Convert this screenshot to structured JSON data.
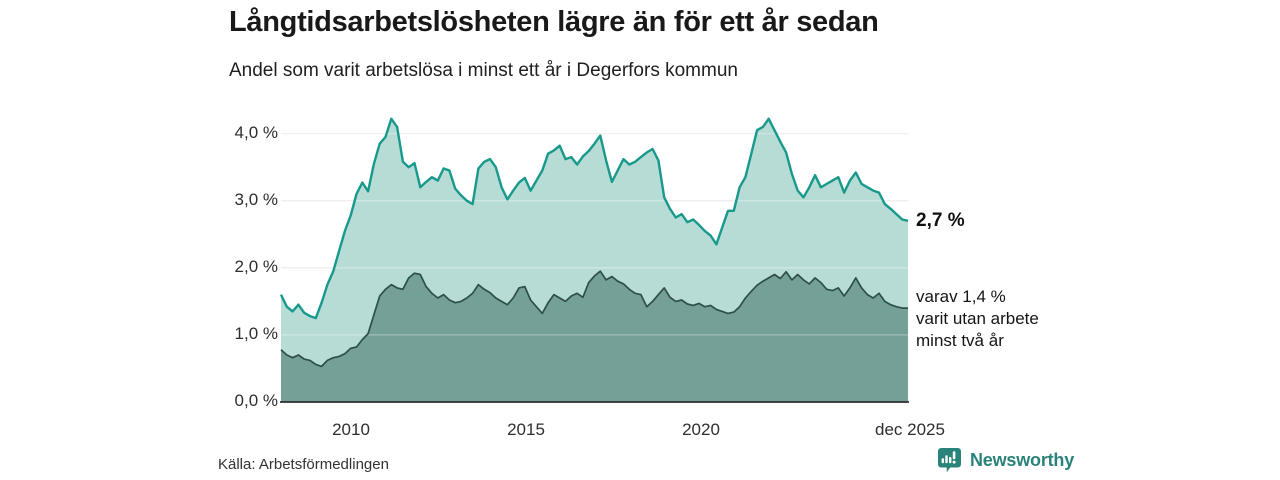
{
  "header": {
    "title": "Långtidsarbetslösheten lägre än för ett år sedan",
    "subtitle": "Andel som varit arbetslösa i minst ett år i Degerfors kommun"
  },
  "chart_data": {
    "type": "area",
    "title": "Långtidsarbetslösheten lägre än för ett år sedan",
    "subtitle": "Andel som varit arbetslösa i minst ett år i Degerfors kommun",
    "unit": "%",
    "x_range": [
      "jan 2008",
      "dec 2025"
    ],
    "sampling": "values every 2 months, jan 2008 - dec 2025",
    "x_tick_labels": [
      "2010",
      "2015",
      "2020",
      "dec 2025"
    ],
    "y_tick_labels": [
      "4,0 %",
      "3,0 %",
      "2,0 %",
      "1,0 %",
      "0,0 %"
    ],
    "y_gridlines": [
      4,
      3,
      2,
      1
    ],
    "ylim": [
      0,
      4.3
    ],
    "grid": true,
    "legend_position": "right-annotations",
    "series": [
      {
        "name": "Andel arbetslösa minst ett år",
        "color": "#18998b",
        "fill": "#b7dcd6",
        "end_value": 2.7,
        "end_label": "2,7 %",
        "values": [
          1.6,
          1.42,
          1.35,
          1.45,
          1.33,
          1.28,
          1.25,
          1.48,
          1.75,
          1.95,
          2.25,
          2.55,
          2.78,
          3.1,
          3.27,
          3.14,
          3.55,
          3.85,
          3.95,
          4.22,
          4.1,
          3.58,
          3.5,
          3.56,
          3.2,
          3.28,
          3.35,
          3.3,
          3.48,
          3.45,
          3.18,
          3.08,
          3.0,
          2.95,
          3.48,
          3.58,
          3.62,
          3.5,
          3.2,
          3.02,
          3.15,
          3.27,
          3.34,
          3.15,
          3.3,
          3.45,
          3.7,
          3.75,
          3.82,
          3.62,
          3.65,
          3.54,
          3.66,
          3.74,
          3.85,
          3.97,
          3.6,
          3.28,
          3.45,
          3.62,
          3.54,
          3.58,
          3.65,
          3.72,
          3.77,
          3.6,
          3.05,
          2.88,
          2.75,
          2.8,
          2.68,
          2.72,
          2.64,
          2.55,
          2.48,
          2.35,
          2.6,
          2.85,
          2.85,
          3.2,
          3.35,
          3.7,
          4.05,
          4.1,
          4.22,
          4.05,
          3.88,
          3.72,
          3.4,
          3.15,
          3.05,
          3.2,
          3.38,
          3.2,
          3.25,
          3.3,
          3.35,
          3.12,
          3.3,
          3.42,
          3.25,
          3.2,
          3.15,
          3.12,
          2.95,
          2.88,
          2.8,
          2.72,
          2.7
        ]
      },
      {
        "name": "varav utan arbete minst två år",
        "color": "#2e4f48",
        "fill": "#74a098",
        "end_value": 1.4,
        "end_label_lines": [
          "varav 1,4 %",
          "varit utan arbete",
          "minst två år"
        ],
        "values": [
          0.78,
          0.7,
          0.66,
          0.7,
          0.64,
          0.62,
          0.56,
          0.53,
          0.62,
          0.66,
          0.68,
          0.72,
          0.8,
          0.82,
          0.93,
          1.02,
          1.3,
          1.58,
          1.68,
          1.75,
          1.7,
          1.68,
          1.85,
          1.92,
          1.9,
          1.72,
          1.62,
          1.55,
          1.6,
          1.52,
          1.48,
          1.5,
          1.55,
          1.62,
          1.75,
          1.68,
          1.63,
          1.55,
          1.5,
          1.45,
          1.55,
          1.7,
          1.72,
          1.52,
          1.42,
          1.32,
          1.48,
          1.6,
          1.55,
          1.5,
          1.58,
          1.62,
          1.56,
          1.78,
          1.88,
          1.95,
          1.82,
          1.87,
          1.8,
          1.76,
          1.68,
          1.62,
          1.6,
          1.42,
          1.5,
          1.6,
          1.7,
          1.56,
          1.5,
          1.52,
          1.46,
          1.44,
          1.47,
          1.42,
          1.44,
          1.38,
          1.35,
          1.32,
          1.34,
          1.42,
          1.55,
          1.65,
          1.74,
          1.8,
          1.85,
          1.9,
          1.84,
          1.94,
          1.82,
          1.9,
          1.82,
          1.76,
          1.85,
          1.78,
          1.68,
          1.66,
          1.7,
          1.58,
          1.7,
          1.85,
          1.7,
          1.6,
          1.55,
          1.62,
          1.5,
          1.45,
          1.42,
          1.4,
          1.4
        ]
      }
    ],
    "colors": {
      "axis_line": "#2e2e2e",
      "gridline": "#e8e8e8",
      "brand_teal": "#2a837a"
    }
  },
  "footer": {
    "source": "Källa: Arbetsförmedlingen",
    "brand": "Newsworthy"
  }
}
